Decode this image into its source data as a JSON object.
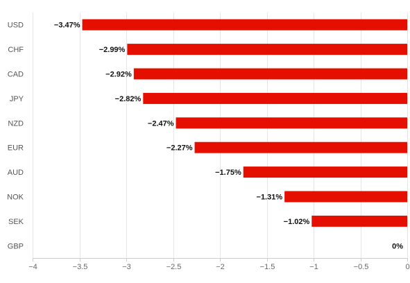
{
  "chart_data": {
    "type": "bar",
    "orientation": "horizontal",
    "categories": [
      "USD",
      "CHF",
      "CAD",
      "JPY",
      "NZD",
      "EUR",
      "AUD",
      "NOK",
      "SEK",
      "GBP"
    ],
    "series": [
      {
        "values": [
          -3.47,
          -2.99,
          -2.92,
          -2.82,
          -2.47,
          -2.27,
          -1.75,
          -1.31,
          -1.02,
          0
        ]
      }
    ],
    "data_labels": [
      "−3.47%",
      "−2.99%",
      "−2.92%",
      "−2.82%",
      "−2.47%",
      "−2.27%",
      "−1.75%",
      "−1.31%",
      "−1.02%",
      "0%"
    ],
    "x_ticks": [
      -4,
      -3.5,
      -3,
      -2.5,
      -2,
      -1.5,
      -1,
      -0.5,
      0
    ],
    "x_tick_labels": [
      "−4",
      "−3.5",
      "−3",
      "−2.5",
      "−2",
      "−1.5",
      "−1",
      "−0.5",
      "0"
    ],
    "xlim": [
      -4,
      0
    ],
    "grid": true,
    "bar_color": "#e50f00",
    "grid_color": "#e6e6e6",
    "title": "",
    "xlabel": "",
    "ylabel": ""
  }
}
